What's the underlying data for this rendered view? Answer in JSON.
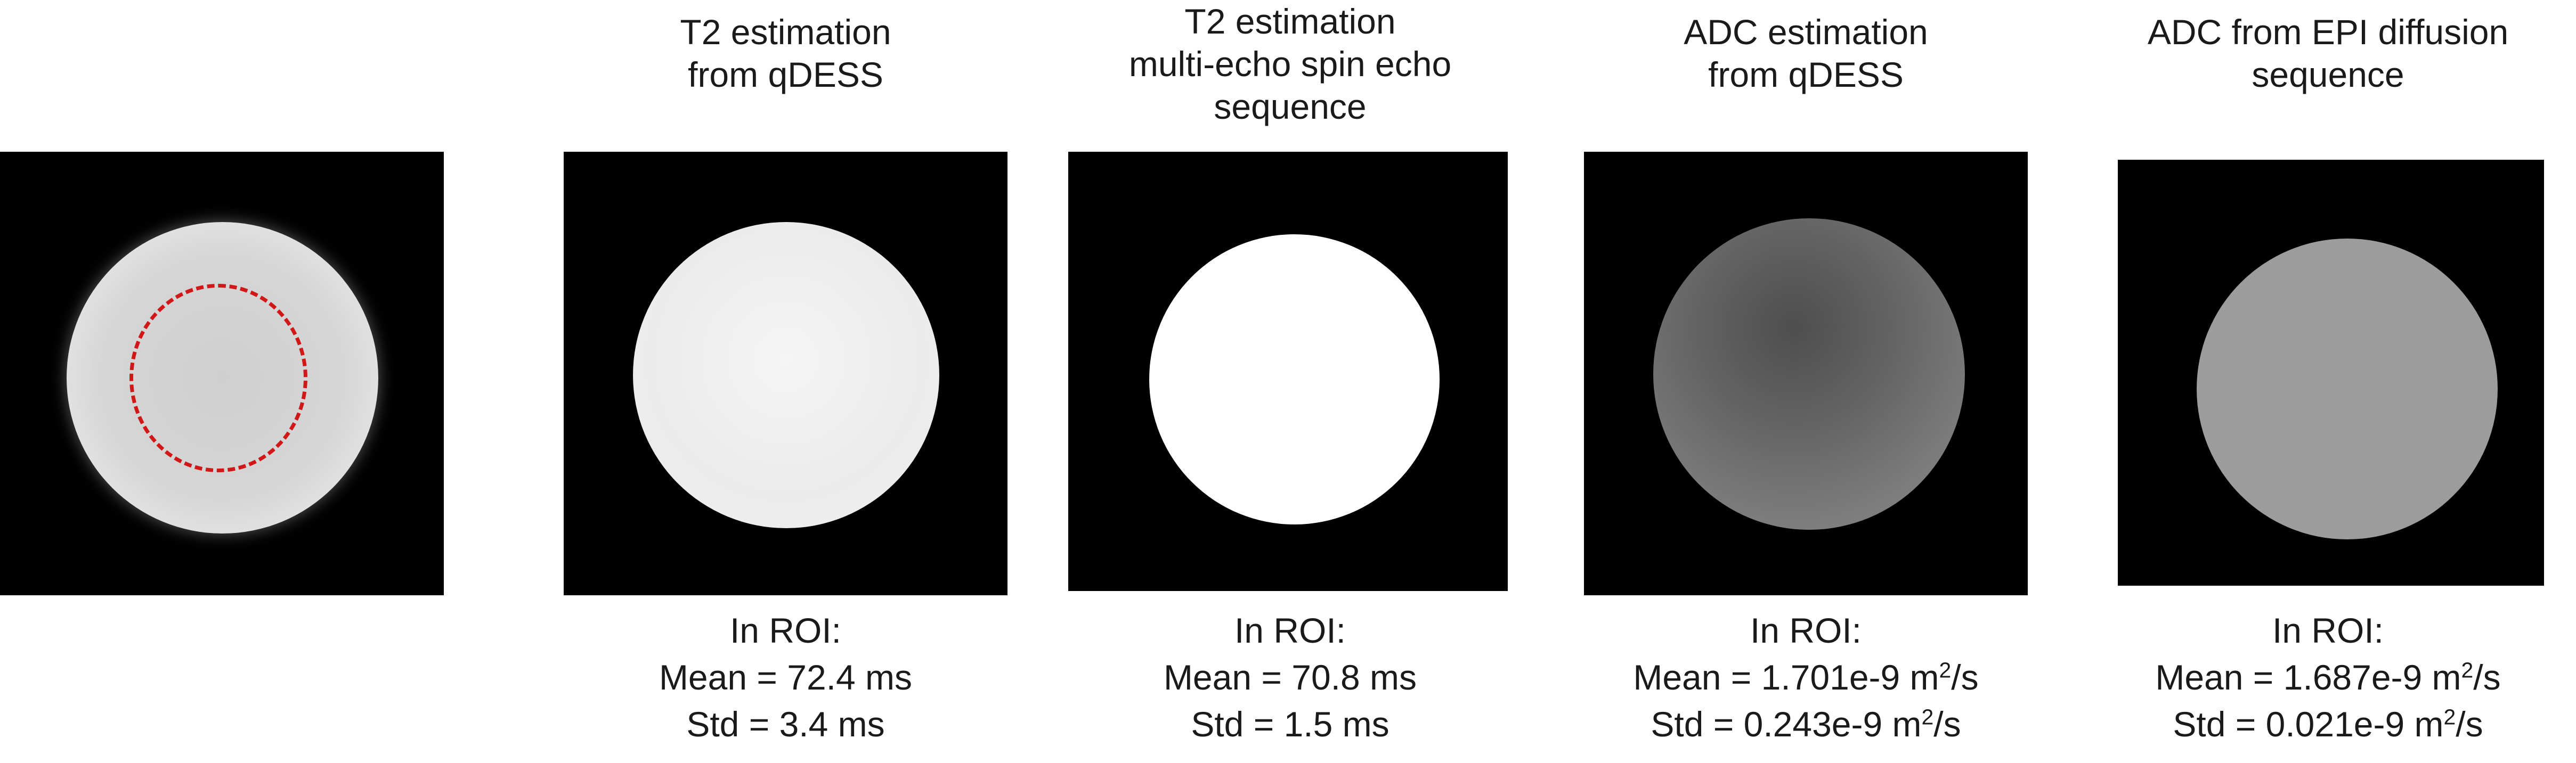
{
  "panels": [
    {
      "title": [],
      "stats": []
    },
    {
      "title": [
        "T2 estimation",
        "from qDESS"
      ],
      "stats": {
        "label": "In ROI:",
        "mean": "Mean = 72.4 ms",
        "std": "Std = 3.4 ms"
      }
    },
    {
      "title": [
        "T2 estimation",
        "multi-echo spin echo",
        "sequence"
      ],
      "stats": {
        "label": "In ROI:",
        "mean": "Mean = 70.8 ms",
        "std": "Std = 1.5 ms"
      }
    },
    {
      "title": [
        "ADC estimation",
        "from qDESS"
      ],
      "stats": {
        "label": "In ROI:",
        "mean_prefix": "Mean = 1.701e-9 m",
        "mean_sup": "2",
        "mean_suffix": "/s",
        "std_prefix": "Std = 0.243e-9 m",
        "std_sup": "2",
        "std_suffix": "/s"
      }
    },
    {
      "title": [
        "ADC from EPI diffusion",
        "sequence"
      ],
      "stats": {
        "label": "In ROI:",
        "mean_prefix": "Mean = 1.687e-9 m",
        "mean_sup": "2",
        "mean_suffix": "/s",
        "std_prefix": "Std = 0.021e-9 m",
        "std_sup": "2",
        "std_suffix": "/s"
      }
    }
  ],
  "colors": {
    "background": "#000000",
    "roi_outline": "#d01818",
    "phantom_1": "#d8d8d8",
    "phantom_2": "#f2f2f2",
    "phantom_3": "#ffffff",
    "phantom_4": "#7a7a7a",
    "phantom_5": "#9a9a9a"
  }
}
